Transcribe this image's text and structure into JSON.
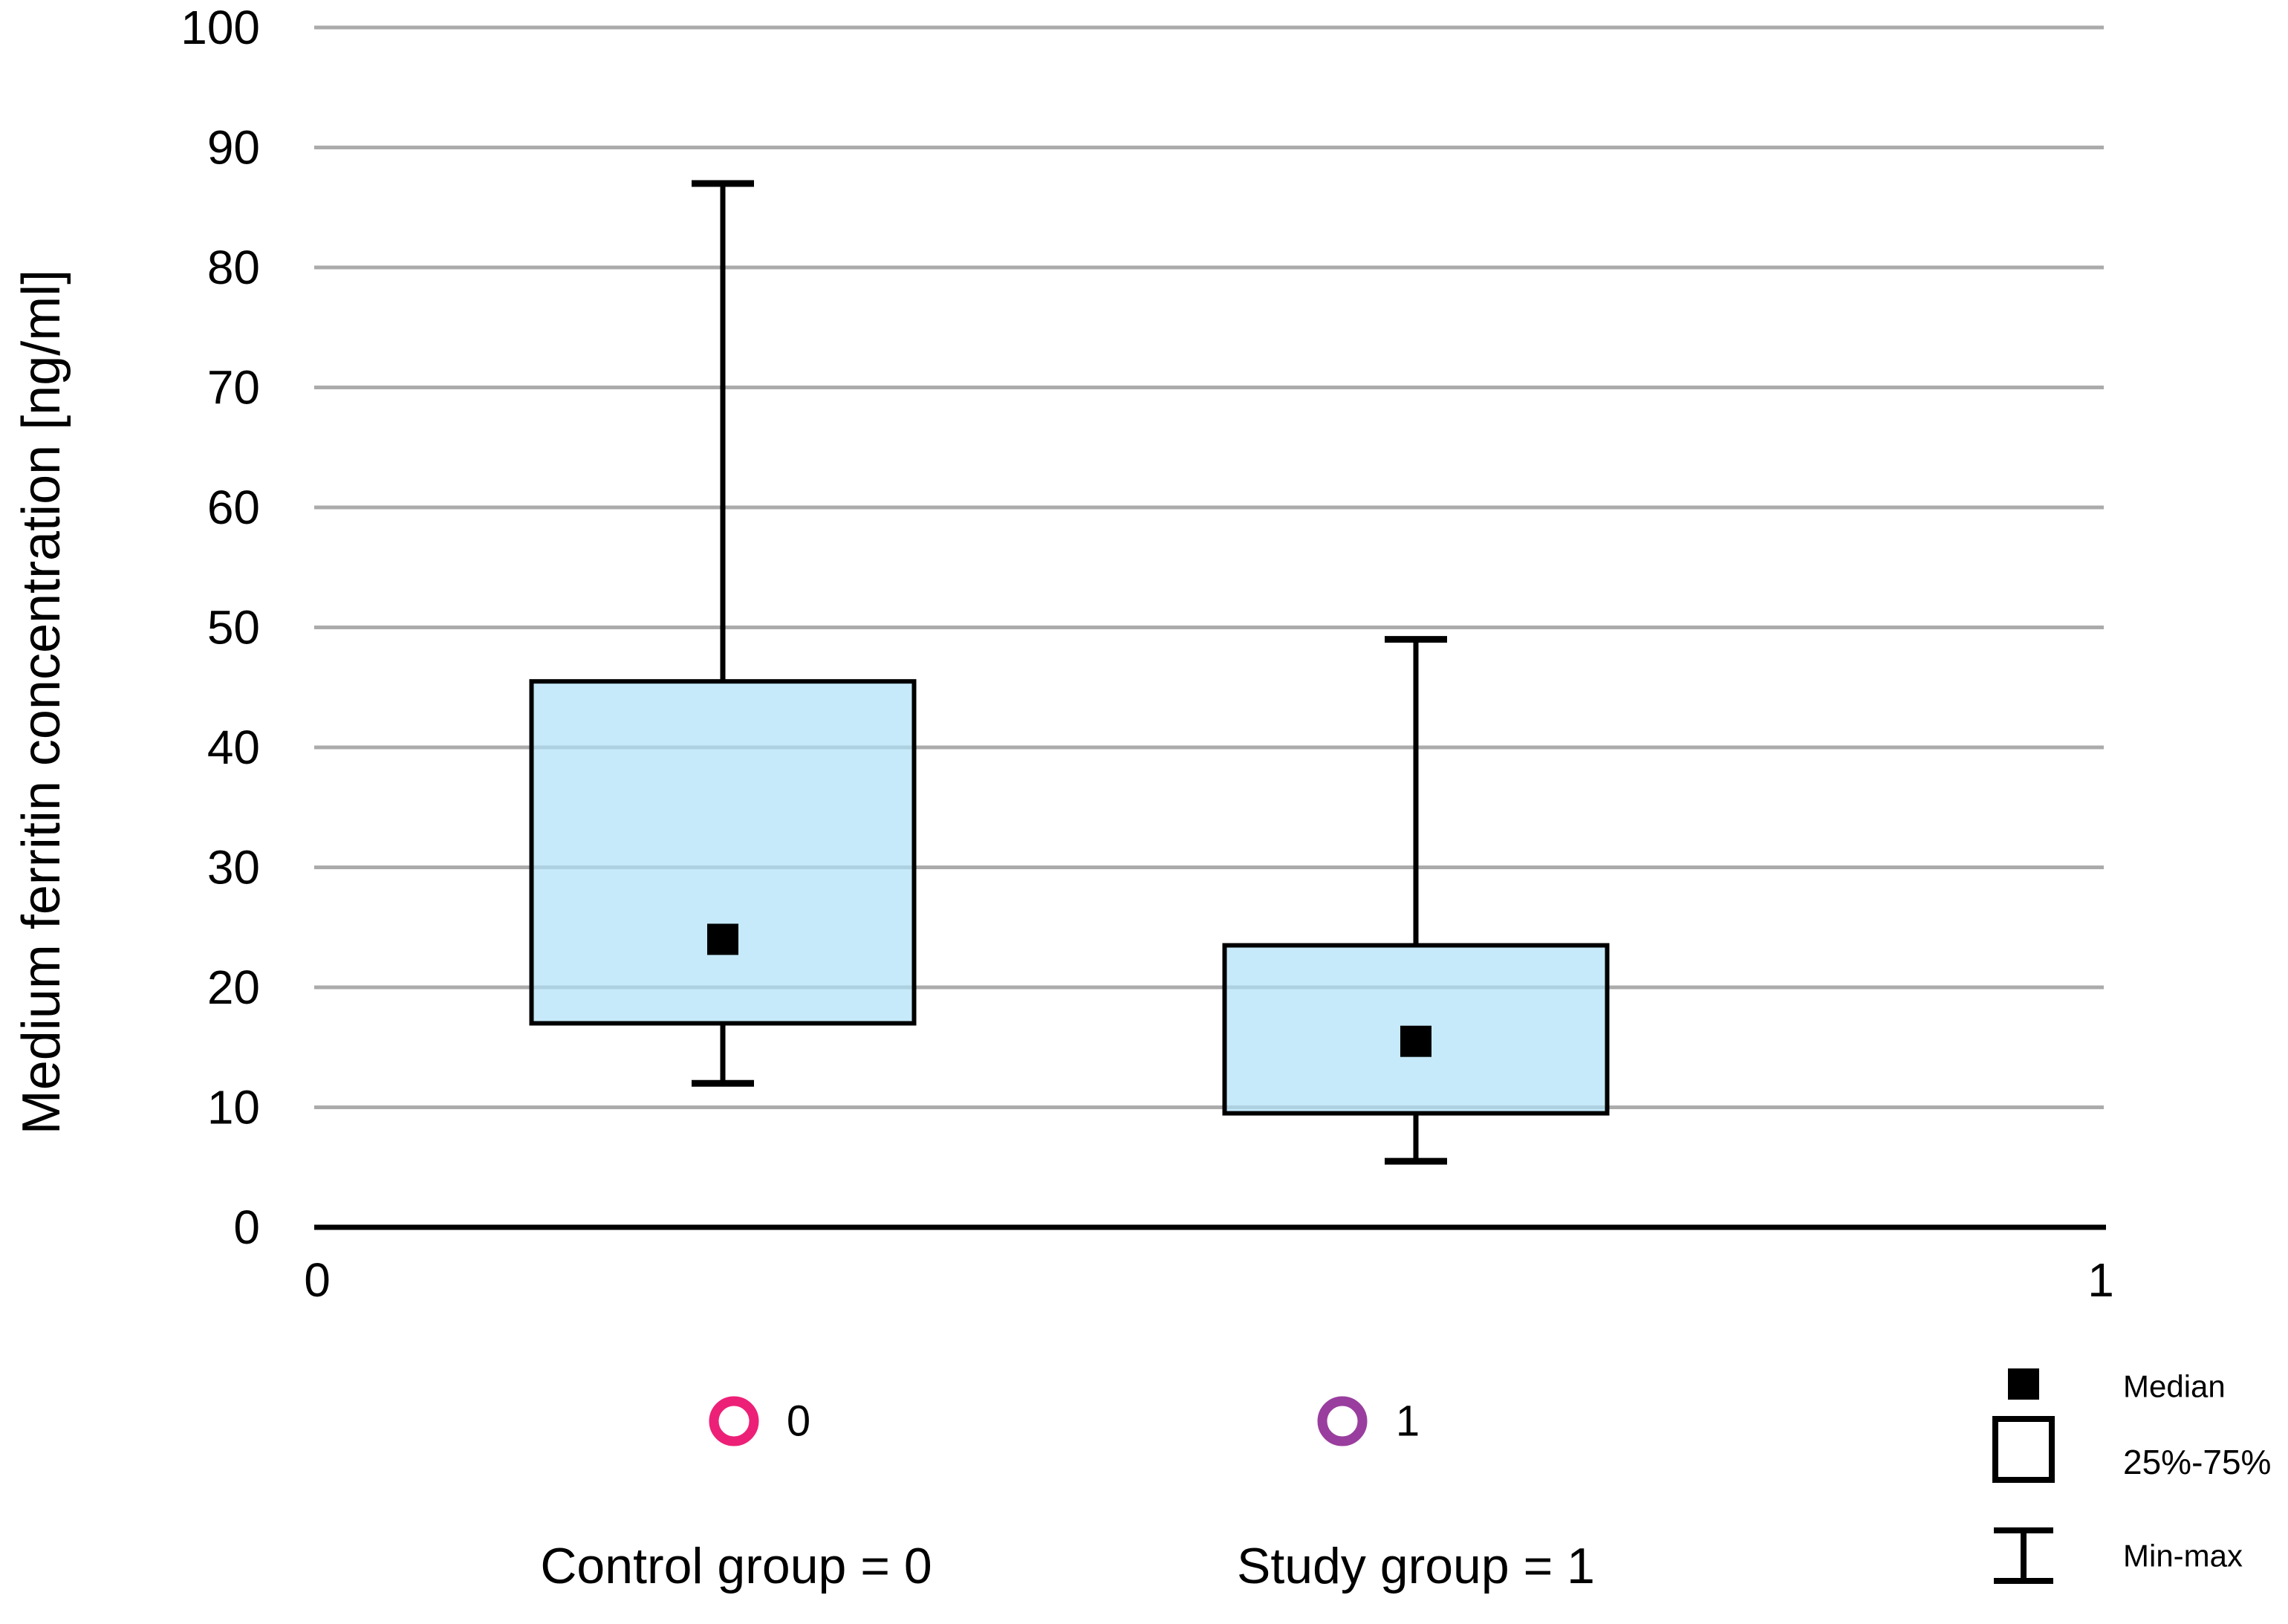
{
  "chart_data": {
    "type": "box",
    "title": "",
    "ylabel": "Medium ferritin concentration [ng/ml]",
    "xlabel": "",
    "grid": "horizontal",
    "y_axis": {
      "min": 0,
      "max": 100,
      "tick_step": 10,
      "ticks": [
        {
          "value": 0,
          "label": "0"
        },
        {
          "value": 10,
          "label": "10"
        },
        {
          "value": 20,
          "label": "20"
        },
        {
          "value": 30,
          "label": "30"
        },
        {
          "value": 40,
          "label": "40"
        },
        {
          "value": 50,
          "label": "50"
        },
        {
          "value": 60,
          "label": "60"
        },
        {
          "value": 70,
          "label": "70"
        },
        {
          "value": 80,
          "label": "80"
        },
        {
          "value": 90,
          "label": "90"
        },
        {
          "value": 100,
          "label": "100"
        }
      ]
    },
    "x_axis": {
      "min": 0,
      "max": 1,
      "tick_labels": [
        "0",
        "1"
      ]
    },
    "groups": [
      {
        "name": "Control group = 0",
        "marker_label": "0",
        "marker_color": "#ED2077",
        "stats": {
          "min": 12,
          "q1": 17,
          "median": 24,
          "q3": 45.5,
          "max": 87
        }
      },
      {
        "name": "Study group = 1",
        "marker_label": "1",
        "marker_color": "#993E9E",
        "stats": {
          "min": 5.5,
          "q1": 9.5,
          "median": 15.5,
          "q3": 23.5,
          "max": 49
        }
      }
    ],
    "legend": [
      {
        "symbol": "filled-square",
        "label": "Median"
      },
      {
        "symbol": "open-square",
        "label": "25%-75%"
      },
      {
        "symbol": "whisker",
        "label": "Min-max"
      }
    ],
    "legend_position": "bottom-right",
    "colors": {
      "box_fill": "#AEE1F8",
      "box_border": "#000000",
      "gridline": "#ABABAB",
      "axis": "#000000",
      "median_marker": "#000000",
      "text": "#000000",
      "background": "#ffffff"
    }
  }
}
